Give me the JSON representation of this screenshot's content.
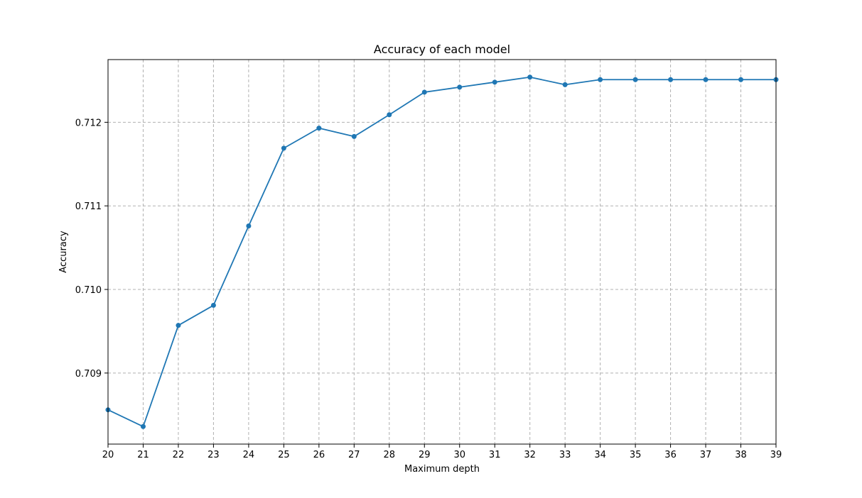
{
  "chart_data": {
    "type": "line",
    "title": "Accuracy of each model",
    "xlabel": "Maximum depth",
    "ylabel": "Accuracy",
    "x": [
      20,
      21,
      22,
      23,
      24,
      25,
      26,
      27,
      28,
      29,
      30,
      31,
      32,
      33,
      34,
      35,
      36,
      37,
      38,
      39
    ],
    "series": [
      {
        "values": [
          0.70856,
          0.70836,
          0.70957,
          0.70981,
          0.71076,
          0.71169,
          0.71193,
          0.71183,
          0.71209,
          0.71236,
          0.71242,
          0.71248,
          0.71254,
          0.71245,
          0.71251,
          0.71251,
          0.71251,
          0.71251,
          0.71251,
          0.71251
        ],
        "color": "#1f77b4",
        "marker": "circle"
      }
    ],
    "xlim": [
      20,
      39
    ],
    "ylim": [
      0.70815,
      0.71275
    ],
    "xticks": [
      20,
      21,
      22,
      23,
      24,
      25,
      26,
      27,
      28,
      29,
      30,
      31,
      32,
      33,
      34,
      35,
      36,
      37,
      38,
      39
    ],
    "xtick_labels": [
      "20",
      "21",
      "22",
      "23",
      "24",
      "25",
      "26",
      "27",
      "28",
      "29",
      "30",
      "31",
      "32",
      "33",
      "34",
      "35",
      "36",
      "37",
      "38",
      "39"
    ],
    "yticks": [
      0.709,
      0.71,
      0.711,
      0.712
    ],
    "ytick_labels": [
      "0.709",
      "0.710",
      "0.711",
      "0.712"
    ],
    "grid": true,
    "legend": false
  }
}
